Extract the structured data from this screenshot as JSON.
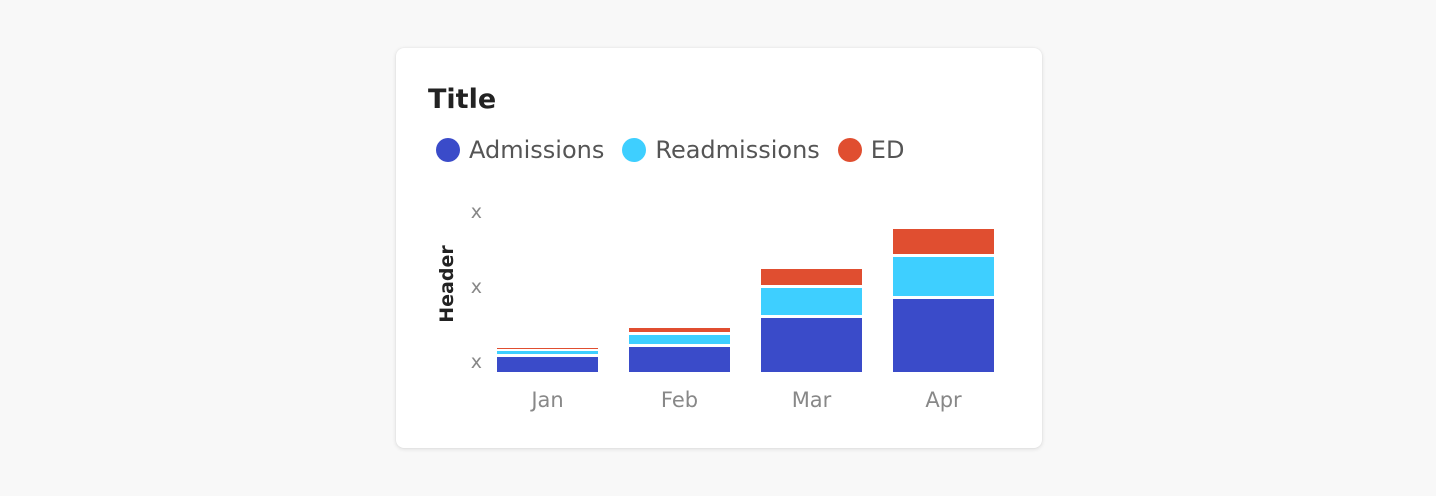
{
  "card": {
    "title": "Title",
    "legend": [
      {
        "label": "Admissions",
        "color": "#3a4bc9"
      },
      {
        "label": "Readmissions",
        "color": "#3ecfff"
      },
      {
        "label": "ED",
        "color": "#e04e30"
      }
    ]
  },
  "chart_data": {
    "type": "bar",
    "stacked": true,
    "title": "Title",
    "xlabel": "",
    "ylabel": "Header",
    "categories": [
      "Jan",
      "Feb",
      "Mar",
      "Apr"
    ],
    "ytick_labels": [
      "x",
      "x",
      "x"
    ],
    "ylim": [
      0,
      160
    ],
    "grid": false,
    "legend_position": "top-left",
    "series": [
      {
        "name": "Admissions",
        "color": "#3a4bc9",
        "values": [
          15,
          25,
          54,
          73
        ]
      },
      {
        "name": "Readmissions",
        "color": "#3ecfff",
        "values": [
          6,
          12,
          30,
          42
        ]
      },
      {
        "name": "ED",
        "color": "#e04e30",
        "values": [
          3,
          7,
          19,
          28
        ]
      }
    ]
  }
}
